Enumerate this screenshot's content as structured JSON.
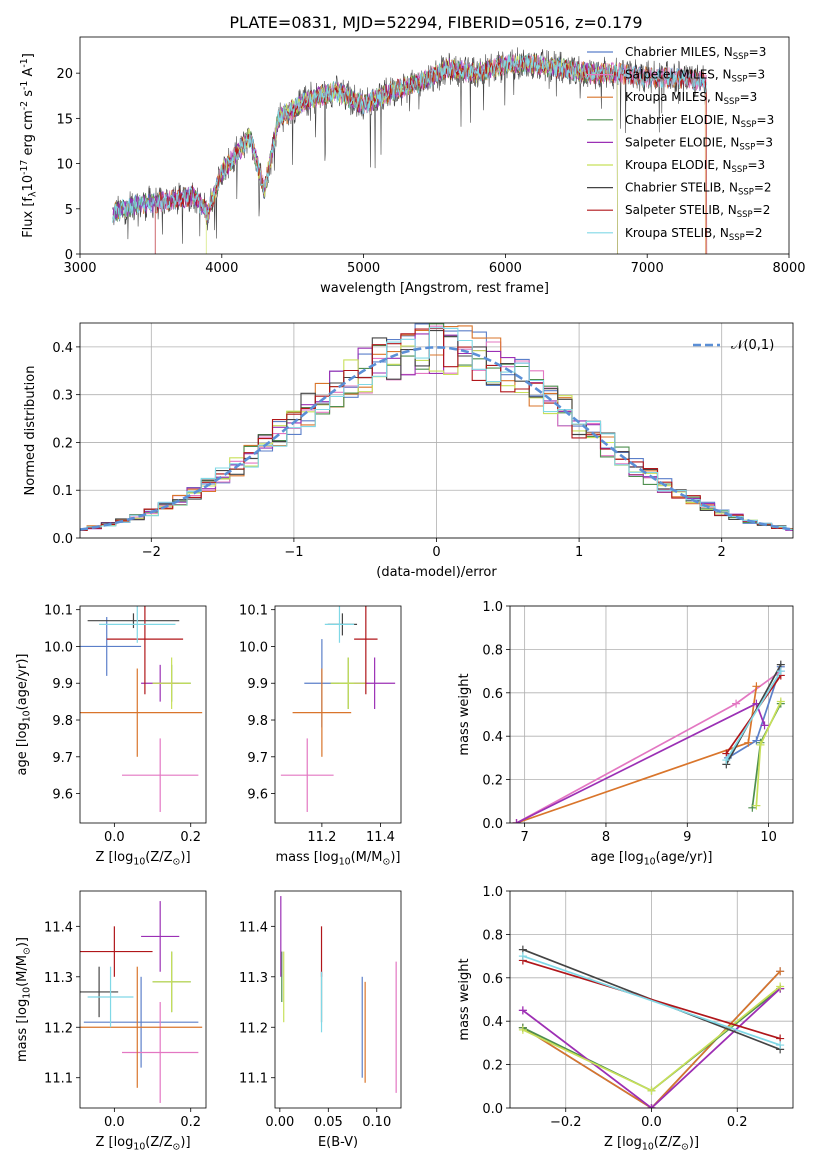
{
  "figure_title": "PLATE=0831, MJD=52294, FIBERID=0516, z=0.179",
  "models": [
    {
      "label": "Chabrier MILES, N$_{SSP}$=3",
      "name": "Chabrier MILES",
      "n": "3",
      "color": "#5b7fc9"
    },
    {
      "label": "Salpeter MILES, N$_{SSP}$=3",
      "name": "Salpeter MILES",
      "n": "3",
      "color": "#e377c2"
    },
    {
      "label": "Kroupa MILES, N$_{SSP}$=3",
      "name": "Kroupa MILES",
      "n": "3",
      "color": "#d9752b"
    },
    {
      "label": "Chabrier ELODIE, N$_{SSP}$=3",
      "name": "Chabrier ELODIE",
      "n": "3",
      "color": "#4e8f4e"
    },
    {
      "label": "Salpeter ELODIE, N$_{SSP}$=3",
      "name": "Salpeter ELODIE",
      "n": "3",
      "color": "#9b30b5"
    },
    {
      "label": "Kroupa ELODIE, N$_{SSP}$=3",
      "name": "Kroupa ELODIE",
      "n": "3",
      "color": "#c8e05a"
    },
    {
      "label": "Chabrier STELIB, N$_{SSP}$=2",
      "name": "Chabrier STELIB",
      "n": "2",
      "color": "#444444"
    },
    {
      "label": "Salpeter STELIB, N$_{SSP}$=2",
      "name": "Salpeter STELIB",
      "n": "2",
      "color": "#b0161a"
    },
    {
      "label": "Kroupa STELIB, N$_{SSP}$=2",
      "name": "Kroupa STELIB",
      "n": "2",
      "color": "#80d8e6"
    }
  ],
  "chart_data": [
    {
      "id": "spectrum",
      "type": "line",
      "xlabel": "wavelength [Angstrom, rest frame]",
      "ylabel": "Flux [f$_\\lambda$10$^{-17}$ erg cm$^{-2}$ s$^{-1}$ A$^{-1}$]",
      "xlim": [
        3000,
        8000
      ],
      "ylim": [
        0,
        24
      ],
      "xticks": [
        3000,
        4000,
        5000,
        6000,
        7000,
        8000
      ],
      "yticks": [
        0,
        5,
        10,
        15,
        20
      ],
      "data_range": [
        3230,
        7420
      ],
      "envelope": {
        "x": [
          3230,
          3400,
          3600,
          3800,
          3900,
          4000,
          4200,
          4300,
          4400,
          4600,
          4800,
          5000,
          5200,
          5400,
          5600,
          5800,
          6000,
          6200,
          6400,
          6600,
          6800,
          7000,
          7200,
          7420
        ],
        "y": [
          4.5,
          5.5,
          5.8,
          6.5,
          4.5,
          9,
          13,
          7,
          15,
          17,
          18,
          16.5,
          18,
          19,
          20.5,
          20,
          21,
          21,
          20.5,
          20,
          20,
          19.5,
          19.5,
          19
        ]
      },
      "drop_edges": [
        3540,
        3560,
        3900,
        6780,
        7300,
        7400
      ],
      "legend_loc": "upper right",
      "grid": false
    },
    {
      "id": "residuals",
      "type": "histogram",
      "xlabel": "(data-model)/error",
      "ylabel": "Normed distribution",
      "xlim": [
        -2.5,
        2.5
      ],
      "ylim": [
        0,
        0.45
      ],
      "xticks": [
        -2,
        -1,
        0,
        1,
        2
      ],
      "yticks": [
        0.0,
        0.1,
        0.2,
        0.3,
        0.4
      ],
      "bin_width": 0.1,
      "reference": {
        "label": "$\\mathcal{N}(0,1)$",
        "color": "#5b8fd6"
      },
      "grid": true
    },
    {
      "id": "age_vs_Z",
      "type": "errorbar",
      "xlabel": "Z [log$_{10}$(Z/Z$_\\odot$)]",
      "ylabel": "age  [log$_{10}$($age/yr$)]",
      "xlim": [
        -0.09,
        0.24
      ],
      "ylim": [
        9.52,
        10.11
      ],
      "xticks": [
        0.0,
        0.2
      ],
      "yticks": [
        9.6,
        9.7,
        9.8,
        9.9,
        10.0,
        10.1
      ],
      "points": [
        {
          "model": 0,
          "x": -0.02,
          "y": 10.0,
          "xerr": 0.09,
          "yerr": 0.08
        },
        {
          "model": 1,
          "x": 0.12,
          "y": 9.65,
          "xerr": 0.1,
          "yerr": 0.1
        },
        {
          "model": 2,
          "x": 0.06,
          "y": 9.82,
          "xerr": 0.17,
          "yerr": 0.12
        },
        {
          "model": 3,
          "x": 0.15,
          "y": 9.9,
          "xerr": 0.05,
          "yerr": 0.05
        },
        {
          "model": 4,
          "x": 0.12,
          "y": 9.9,
          "xerr": 0.05,
          "yerr": 0.05
        },
        {
          "model": 5,
          "x": 0.15,
          "y": 9.9,
          "xerr": 0.05,
          "yerr": 0.07
        },
        {
          "model": 6,
          "x": 0.05,
          "y": 10.07,
          "xerr": 0.12,
          "yerr": 0.02
        },
        {
          "model": 7,
          "x": 0.08,
          "y": 10.02,
          "xerr": 0.1,
          "yerr": 0.15
        },
        {
          "model": 8,
          "x": 0.06,
          "y": 10.06,
          "xerr": 0.1,
          "yerr": 0.05
        }
      ]
    },
    {
      "id": "age_vs_mass",
      "type": "errorbar",
      "xlabel": "mass [log$_{10}$($M/M_\\odot$)]",
      "ylabel": "",
      "xlim": [
        11.04,
        11.47
      ],
      "ylim": [
        9.52,
        10.11
      ],
      "xticks": [
        11.2,
        11.4
      ],
      "yticks": [
        9.6,
        9.7,
        9.8,
        9.9,
        10.0,
        10.1
      ],
      "points": [
        {
          "model": 0,
          "x": 11.2,
          "y": 9.9,
          "xerr": 0.06,
          "yerr": 0.12
        },
        {
          "model": 1,
          "x": 11.15,
          "y": 9.65,
          "xerr": 0.09,
          "yerr": 0.1
        },
        {
          "model": 2,
          "x": 11.2,
          "y": 9.82,
          "xerr": 0.1,
          "yerr": 0.12
        },
        {
          "model": 3,
          "x": 11.29,
          "y": 9.9,
          "xerr": 0.06,
          "yerr": 0.07
        },
        {
          "model": 4,
          "x": 11.38,
          "y": 9.9,
          "xerr": 0.07,
          "yerr": 0.07
        },
        {
          "model": 5,
          "x": 11.29,
          "y": 9.9,
          "xerr": 0.06,
          "yerr": 0.07
        },
        {
          "model": 6,
          "x": 11.27,
          "y": 10.06,
          "xerr": 0.05,
          "yerr": 0.03
        },
        {
          "model": 7,
          "x": 11.35,
          "y": 10.02,
          "xerr": 0.04,
          "yerr": 0.15
        },
        {
          "model": 8,
          "x": 11.26,
          "y": 10.06,
          "xerr": 0.05,
          "yerr": 0.05
        }
      ]
    },
    {
      "id": "mass_vs_Z",
      "type": "errorbar",
      "xlabel": "Z [log$_{10}$(Z/Z$_\\odot$)]",
      "ylabel": "mass [log$_{10}$($M/M_\\odot$)]",
      "xlim": [
        -0.09,
        0.24
      ],
      "ylim": [
        11.04,
        11.47
      ],
      "xticks": [
        0.0,
        0.2
      ],
      "yticks": [
        11.1,
        11.2,
        11.3,
        11.4
      ],
      "points": [
        {
          "model": 0,
          "x": 0.07,
          "y": 11.21,
          "xerr": 0.15,
          "yerr": 0.09
        },
        {
          "model": 1,
          "x": 0.12,
          "y": 11.15,
          "xerr": 0.1,
          "yerr": 0.1
        },
        {
          "model": 2,
          "x": 0.06,
          "y": 11.2,
          "xerr": 0.17,
          "yerr": 0.12
        },
        {
          "model": 3,
          "x": 0.15,
          "y": 11.29,
          "xerr": 0.05,
          "yerr": 0.06
        },
        {
          "model": 4,
          "x": 0.12,
          "y": 11.38,
          "xerr": 0.05,
          "yerr": 0.07
        },
        {
          "model": 5,
          "x": 0.15,
          "y": 11.29,
          "xerr": 0.05,
          "yerr": 0.06
        },
        {
          "model": 6,
          "x": -0.04,
          "y": 11.27,
          "xerr": 0.05,
          "yerr": 0.05
        },
        {
          "model": 7,
          "x": 0.0,
          "y": 11.35,
          "xerr": 0.1,
          "yerr": 0.05
        },
        {
          "model": 8,
          "x": -0.01,
          "y": 11.26,
          "xerr": 0.06,
          "yerr": 0.06
        }
      ]
    },
    {
      "id": "mass_vs_EBV",
      "type": "errorbar",
      "xlabel": "E(B-V)",
      "ylabel": "",
      "xlim": [
        -0.005,
        0.125
      ],
      "ylim": [
        11.04,
        11.47
      ],
      "xticks": [
        0.0,
        0.05,
        0.1
      ],
      "yticks": [
        11.1,
        11.2,
        11.3,
        11.4
      ],
      "points": [
        {
          "model": 0,
          "x": 0.085,
          "y": 11.2,
          "xerr": 0,
          "yerr": 0.1
        },
        {
          "model": 1,
          "x": 0.12,
          "y": 11.2,
          "xerr": 0,
          "yerr": 0.13
        },
        {
          "model": 2,
          "x": 0.088,
          "y": 11.19,
          "xerr": 0,
          "yerr": 0.1
        },
        {
          "model": 3,
          "x": 0.002,
          "y": 11.3,
          "xerr": 0,
          "yerr": 0.05
        },
        {
          "model": 4,
          "x": 0.001,
          "y": 11.38,
          "xerr": 0,
          "yerr": 0.08
        },
        {
          "model": 5,
          "x": 0.004,
          "y": 11.28,
          "xerr": 0,
          "yerr": 0.07
        },
        {
          "model": 6,
          "x": 0.043,
          "y": 11.26,
          "xerr": 0,
          "yerr": 0.05
        },
        {
          "model": 7,
          "x": 0.043,
          "y": 11.35,
          "xerr": 0,
          "yerr": 0.05
        },
        {
          "model": 8,
          "x": 0.043,
          "y": 11.25,
          "xerr": 0,
          "yerr": 0.06
        }
      ]
    },
    {
      "id": "weight_vs_age",
      "type": "line",
      "xlabel": "age  [log$_{10}$($age/yr$)]",
      "ylabel": "mass weight",
      "xlim": [
        6.82,
        10.3
      ],
      "ylim": [
        0,
        1
      ],
      "xticks": [
        7,
        8,
        9,
        10
      ],
      "yticks": [
        0.0,
        0.2,
        0.4,
        0.6,
        0.8,
        1.0
      ],
      "series": [
        {
          "model": 0,
          "x": [
            9.5,
            9.85,
            10.15
          ],
          "y": [
            0.3,
            0.38,
            0.72
          ]
        },
        {
          "model": 1,
          "x": [
            6.9,
            9.6,
            10.15
          ],
          "y": [
            0.0,
            0.55,
            0.7
          ]
        },
        {
          "model": 2,
          "x": [
            6.9,
            9.75,
            9.85
          ],
          "y": [
            0.0,
            0.37,
            0.63
          ]
        },
        {
          "model": 3,
          "x": [
            9.8,
            9.9,
            10.15
          ],
          "y": [
            0.07,
            0.37,
            0.55
          ]
        },
        {
          "model": 4,
          "x": [
            6.9,
            9.85,
            9.95
          ],
          "y": [
            0.0,
            0.55,
            0.45
          ]
        },
        {
          "model": 5,
          "x": [
            9.85,
            9.9,
            10.15
          ],
          "y": [
            0.08,
            0.36,
            0.56
          ]
        },
        {
          "model": 6,
          "x": [
            9.48,
            10.15
          ],
          "y": [
            0.27,
            0.73
          ]
        },
        {
          "model": 7,
          "x": [
            9.48,
            10.15
          ],
          "y": [
            0.32,
            0.68
          ]
        },
        {
          "model": 8,
          "x": [
            9.48,
            10.15
          ],
          "y": [
            0.29,
            0.7
          ]
        }
      ],
      "grid": true
    },
    {
      "id": "weight_vs_Z",
      "type": "line",
      "xlabel": "Z [log$_{10}$(Z/Z$_\\odot$)]",
      "ylabel": "mass weight",
      "xlim": [
        -0.33,
        0.33
      ],
      "ylim": [
        0,
        1
      ],
      "xticks": [
        -0.2,
        0.0,
        0.2
      ],
      "yticks": [
        0.0,
        0.2,
        0.4,
        0.6,
        0.8,
        1.0
      ],
      "series": [
        {
          "model": 0,
          "x": [
            -0.3,
            0.0,
            0.3
          ],
          "y": [
            0.37,
            0.0,
            0.63
          ]
        },
        {
          "model": 1,
          "x": [
            -0.3,
            0.0,
            0.3
          ],
          "y": [
            0.45,
            0.0,
            0.55
          ]
        },
        {
          "model": 2,
          "x": [
            -0.3,
            0.0,
            0.3
          ],
          "y": [
            0.37,
            0.0,
            0.63
          ]
        },
        {
          "model": 3,
          "x": [
            -0.3,
            0.0,
            0.3
          ],
          "y": [
            0.37,
            0.08,
            0.55
          ]
        },
        {
          "model": 4,
          "x": [
            -0.3,
            0.0,
            0.3
          ],
          "y": [
            0.45,
            0.0,
            0.55
          ]
        },
        {
          "model": 5,
          "x": [
            -0.3,
            0.0,
            0.3
          ],
          "y": [
            0.36,
            0.08,
            0.56
          ]
        },
        {
          "model": 6,
          "x": [
            -0.3,
            0.3
          ],
          "y": [
            0.73,
            0.27
          ]
        },
        {
          "model": 7,
          "x": [
            -0.3,
            0.3
          ],
          "y": [
            0.68,
            0.32
          ]
        },
        {
          "model": 8,
          "x": [
            -0.3,
            0.3
          ],
          "y": [
            0.7,
            0.29
          ]
        }
      ],
      "grid": true
    }
  ]
}
